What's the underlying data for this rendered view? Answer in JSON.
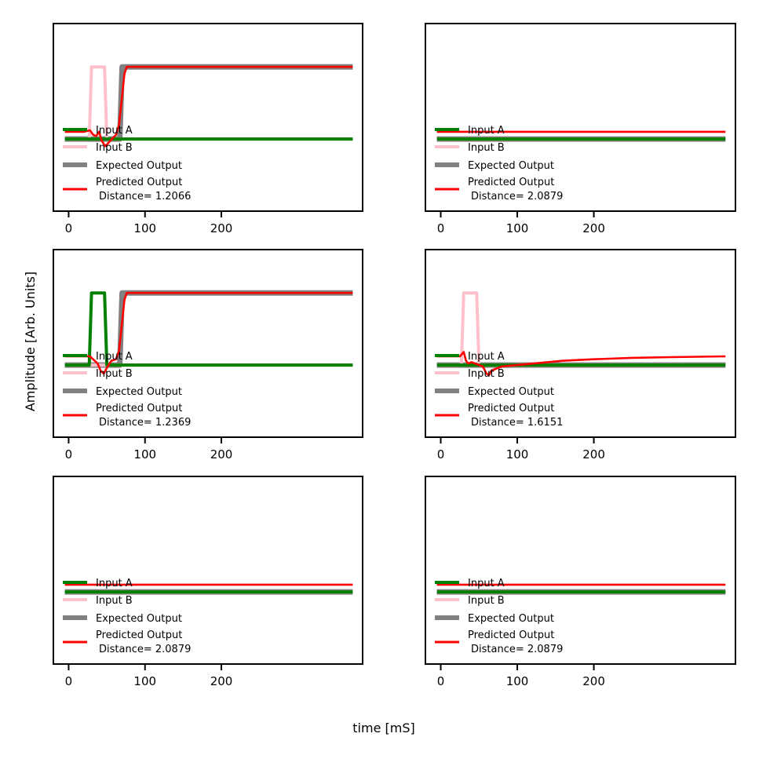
{
  "figure": {
    "xlabel": "time [mS]",
    "ylabel": "Amplitude [Arb. Units]"
  },
  "colors": {
    "input_a": "#008000",
    "input_b": "#ffc0cb",
    "expected": "#808080",
    "predicted": "#ff0000"
  },
  "legend_labels": {
    "input_a": "Input A",
    "input_b": "Input B",
    "expected": "Expected Output",
    "predicted": "Predicted Output"
  },
  "chart_data": [
    {
      "type": "line",
      "panel": "top-left",
      "distance_text": "Distance= 1.2066",
      "xlim": [
        -20,
        385
      ],
      "ylim": [
        -1.0,
        1.6
      ],
      "xticks": [
        0,
        100,
        200
      ],
      "legend_loc": "lower-left",
      "series": [
        {
          "key": "expected",
          "x": [
            -5,
            67,
            70,
            372
          ],
          "y": [
            0,
            0,
            1,
            1
          ]
        },
        {
          "key": "input_b",
          "x": [
            -5,
            27,
            30,
            47,
            50,
            372
          ],
          "y": [
            0,
            0,
            1,
            1,
            0,
            0
          ]
        },
        {
          "key": "input_a",
          "x": [
            -5,
            372
          ],
          "y": [
            0,
            0
          ]
        },
        {
          "key": "predicted",
          "x": [
            -5,
            20,
            28,
            32,
            36,
            40,
            43,
            48,
            55,
            62,
            66,
            70,
            73,
            76,
            80,
            100,
            150,
            372
          ],
          "y": [
            0.1,
            0.1,
            0.12,
            0.06,
            0.04,
            0.1,
            -0.02,
            -0.1,
            -0.02,
            0.06,
            0.2,
            0.6,
            0.9,
            1.0,
            1.0,
            1.0,
            1.0,
            1.0
          ]
        }
      ]
    },
    {
      "type": "line",
      "panel": "top-right",
      "distance_text": "Distance= 2.0879",
      "xlim": [
        -20,
        385
      ],
      "ylim": [
        -1.0,
        1.6
      ],
      "xticks": [
        0,
        100,
        200
      ],
      "legend_loc": "lower-left",
      "series": [
        {
          "key": "expected",
          "x": [
            -5,
            372
          ],
          "y": [
            0,
            0
          ]
        },
        {
          "key": "input_b",
          "x": [
            -5,
            372
          ],
          "y": [
            0,
            0
          ]
        },
        {
          "key": "input_a",
          "x": [
            -5,
            372
          ],
          "y": [
            0,
            0
          ]
        },
        {
          "key": "predicted",
          "x": [
            -5,
            372
          ],
          "y": [
            0.1,
            0.1
          ]
        }
      ]
    },
    {
      "type": "line",
      "panel": "middle-left",
      "distance_text": "Distance= 1.2369",
      "xlim": [
        -20,
        385
      ],
      "ylim": [
        -1.0,
        1.6
      ],
      "xticks": [
        0,
        100,
        200
      ],
      "legend_loc": "lower-left",
      "series": [
        {
          "key": "expected",
          "x": [
            -5,
            67,
            70,
            372
          ],
          "y": [
            0,
            0,
            1,
            1
          ]
        },
        {
          "key": "input_b",
          "x": [
            -5,
            372
          ],
          "y": [
            0,
            0
          ]
        },
        {
          "key": "input_a",
          "x": [
            -5,
            27,
            30,
            47,
            50,
            372
          ],
          "y": [
            0,
            0,
            1,
            1,
            0,
            0
          ]
        },
        {
          "key": "predicted",
          "x": [
            -5,
            20,
            28,
            32,
            38,
            42,
            46,
            50,
            56,
            62,
            66,
            70,
            73,
            76,
            80,
            150,
            372
          ],
          "y": [
            0.12,
            0.12,
            0.12,
            0.08,
            0.02,
            -0.08,
            -0.12,
            -0.04,
            0.06,
            0.08,
            0.2,
            0.6,
            0.9,
            1.0,
            1.0,
            1.0,
            1.0
          ]
        }
      ]
    },
    {
      "type": "line",
      "panel": "middle-right",
      "distance_text": "Distance= 1.6151",
      "xlim": [
        -20,
        385
      ],
      "ylim": [
        -1.0,
        1.6
      ],
      "xticks": [
        0,
        100,
        200
      ],
      "legend_loc": "lower-left",
      "series": [
        {
          "key": "expected",
          "x": [
            -5,
            372
          ],
          "y": [
            0,
            0
          ]
        },
        {
          "key": "input_b",
          "x": [
            -5,
            27,
            30,
            47,
            50,
            372
          ],
          "y": [
            0,
            0,
            1,
            1,
            0,
            0
          ]
        },
        {
          "key": "input_a",
          "x": [
            -5,
            372
          ],
          "y": [
            0,
            0
          ]
        },
        {
          "key": "predicted",
          "x": [
            -5,
            25,
            30,
            33,
            36,
            40,
            45,
            50,
            55,
            60,
            63,
            66,
            70,
            80,
            100,
            130,
            160,
            200,
            250,
            300,
            372
          ],
          "y": [
            0.12,
            0.12,
            0.18,
            0.06,
            0.02,
            0.04,
            0.02,
            0.0,
            -0.02,
            -0.12,
            -0.14,
            -0.08,
            -0.06,
            -0.02,
            0.0,
            0.03,
            0.06,
            0.08,
            0.1,
            0.11,
            0.12
          ]
        }
      ]
    },
    {
      "type": "line",
      "panel": "bottom-left",
      "distance_text": "Distance= 2.0879",
      "xlim": [
        -20,
        385
      ],
      "ylim": [
        -1.0,
        1.6
      ],
      "xticks": [
        0,
        100,
        200
      ],
      "legend_loc": "lower-left",
      "series": [
        {
          "key": "expected",
          "x": [
            -5,
            372
          ],
          "y": [
            0,
            0
          ]
        },
        {
          "key": "input_b",
          "x": [
            -5,
            372
          ],
          "y": [
            0,
            0
          ]
        },
        {
          "key": "input_a",
          "x": [
            -5,
            372
          ],
          "y": [
            0,
            0
          ]
        },
        {
          "key": "predicted",
          "x": [
            -5,
            372
          ],
          "y": [
            0.1,
            0.1
          ]
        }
      ]
    },
    {
      "type": "line",
      "panel": "bottom-right",
      "distance_text": "Distance= 2.0879",
      "xlim": [
        -20,
        385
      ],
      "ylim": [
        -1.0,
        1.6
      ],
      "xticks": [
        0,
        100,
        200
      ],
      "legend_loc": "lower-left",
      "series": [
        {
          "key": "expected",
          "x": [
            -5,
            372
          ],
          "y": [
            0,
            0
          ]
        },
        {
          "key": "input_b",
          "x": [
            -5,
            372
          ],
          "y": [
            0,
            0
          ]
        },
        {
          "key": "input_a",
          "x": [
            -5,
            372
          ],
          "y": [
            0,
            0
          ]
        },
        {
          "key": "predicted",
          "x": [
            -5,
            372
          ],
          "y": [
            0.1,
            0.1
          ]
        }
      ]
    }
  ]
}
